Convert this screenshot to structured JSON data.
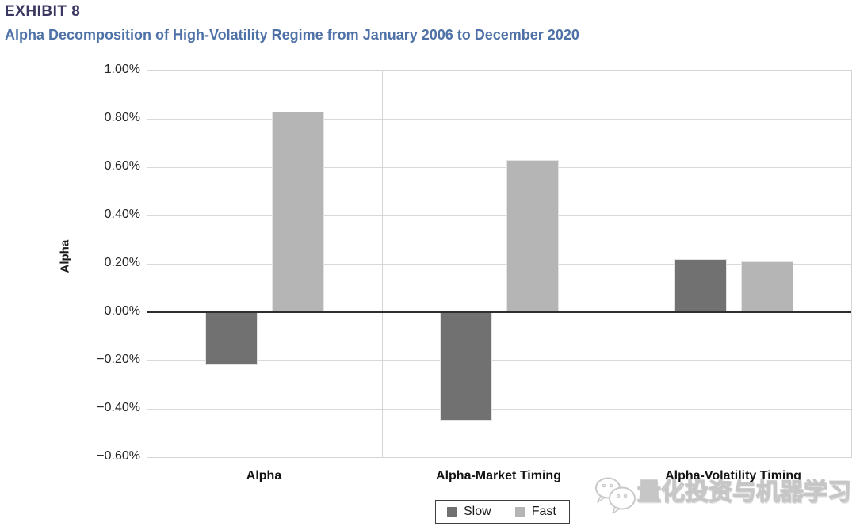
{
  "header": {
    "exhibit_label": "EXHIBIT 8",
    "title": "Alpha Decomposition of High-Volatility Regime from January 2006 to December 2020"
  },
  "chart_data": {
    "type": "bar",
    "categories": [
      "Alpha",
      "Alpha-Market Timing",
      "Alpha-Volatility Timing"
    ],
    "series": [
      {
        "name": "Slow",
        "color": "#717171",
        "values": [
          -0.22,
          -0.45,
          0.22
        ]
      },
      {
        "name": "Fast",
        "color": "#b5b5b5",
        "values": [
          0.83,
          0.63,
          0.21
        ]
      }
    ],
    "title": "Alpha Decomposition of High-Volatility Regime from January 2006 to December 2020",
    "xlabel": "",
    "ylabel": "Alpha",
    "ylim": [
      -0.6,
      1.0
    ],
    "ytick_step": 0.2,
    "ytick_labels": [
      "1.00%",
      "0.80%",
      "0.60%",
      "0.40%",
      "0.20%",
      "0.00%",
      "−0.20%",
      "−0.40%",
      "−0.60%"
    ],
    "grid": true,
    "legend_position": "bottom-center",
    "unit": "percent"
  },
  "legend": {
    "items": [
      {
        "label": "Slow",
        "color": "#717171"
      },
      {
        "label": "Fast",
        "color": "#b5b5b5"
      }
    ]
  },
  "watermark": {
    "icon": "wechat-icon",
    "text": "量化投资与机器学习"
  },
  "colors": {
    "exhibit_label": "#3a3860",
    "title": "#4e72a7",
    "gridline": "#d9d9d9",
    "zero_line": "#2e2e2e"
  }
}
